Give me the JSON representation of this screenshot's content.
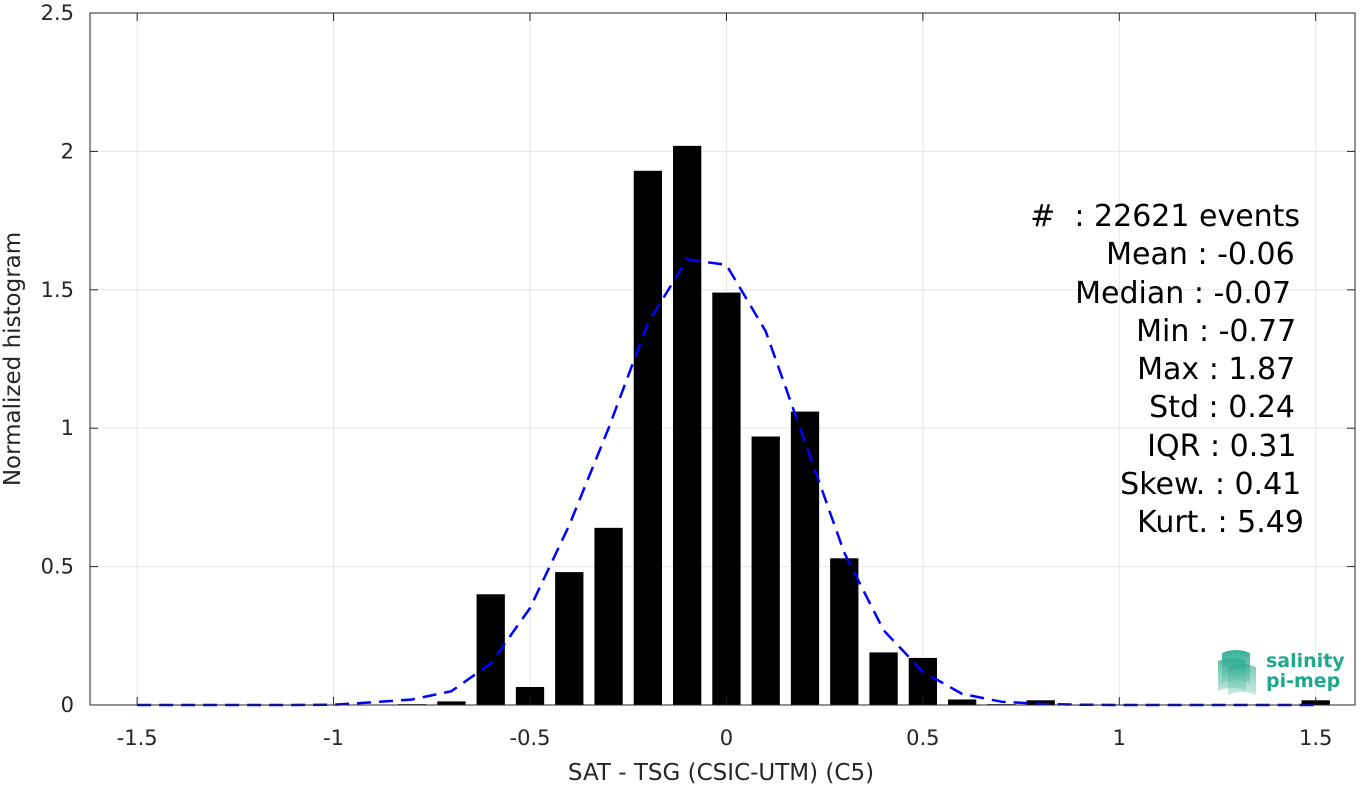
{
  "chart_data": {
    "type": "bar",
    "xlabel": "SAT - TSG (CSIC-UTM) (C5)",
    "ylabel": "Normalized histogram",
    "xlim": [
      -1.62,
      1.6
    ],
    "ylim": [
      0,
      2.5
    ],
    "xticks": [
      -1.5,
      -1,
      -0.5,
      0,
      0.5,
      1,
      1.5
    ],
    "xtick_labels": [
      "-1.5",
      "-1",
      "-0.5",
      "0",
      "0.5",
      "1",
      "1.5"
    ],
    "yticks": [
      0,
      0.5,
      1,
      1.5,
      2,
      2.5
    ],
    "ytick_labels": [
      "0",
      "0.5",
      "1",
      "1.5",
      "2",
      "2.5"
    ],
    "grid": true,
    "bars": {
      "bin_width": 0.1,
      "centers": [
        -0.8,
        -0.7,
        -0.6,
        -0.5,
        -0.4,
        -0.3,
        -0.2,
        -0.1,
        0.0,
        0.1,
        0.2,
        0.3,
        0.4,
        0.5,
        0.6,
        0.7,
        0.8,
        1.5
      ],
      "values": [
        0.003,
        0.013,
        0.4,
        0.065,
        0.48,
        0.64,
        1.93,
        2.02,
        1.49,
        0.97,
        1.06,
        0.53,
        0.19,
        0.17,
        0.02,
        0.003,
        0.017,
        0.017
      ],
      "color": "#000000"
    },
    "fit_curve": {
      "style": "dashed",
      "color": "#0000ff",
      "x": [
        -1.5,
        -1.4,
        -1.3,
        -1.2,
        -1.1,
        -1.0,
        -0.9,
        -0.8,
        -0.7,
        -0.6,
        -0.5,
        -0.4,
        -0.3,
        -0.2,
        -0.1,
        0.0,
        0.1,
        0.2,
        0.3,
        0.4,
        0.5,
        0.6,
        0.7,
        0.8,
        0.9,
        1.0,
        1.1,
        1.2,
        1.3,
        1.4,
        1.5
      ],
      "y": [
        0.0,
        0.0,
        0.0,
        0.0,
        0.0,
        0.001,
        0.01,
        0.02,
        0.05,
        0.15,
        0.35,
        0.65,
        1.0,
        1.38,
        1.61,
        1.59,
        1.35,
        0.95,
        0.55,
        0.27,
        0.12,
        0.04,
        0.012,
        0.004,
        0.001,
        0.0,
        0.0,
        0.0,
        0.0,
        0.0,
        0.0
      ]
    }
  },
  "stats": [
    {
      "label": "#  ",
      "value": ": 22621 events"
    },
    {
      "label": "Mean ",
      "value": ": -0.06"
    },
    {
      "label": "Median ",
      "value": ": -0.07"
    },
    {
      "label": "Min ",
      "value": ": -0.77"
    },
    {
      "label": "Max ",
      "value": ": 1.87"
    },
    {
      "label": "Std ",
      "value": ": 0.24"
    },
    {
      "label": "IQR ",
      "value": ": 0.31"
    },
    {
      "label": "Skew. ",
      "value": ": 0.41"
    },
    {
      "label": "Kurt. ",
      "value": ": 5.49"
    }
  ],
  "logo": {
    "name": "salinity-pi-mep-logo",
    "line1": "salinity",
    "line2": "pi-mep",
    "color": "#1fa88a"
  }
}
